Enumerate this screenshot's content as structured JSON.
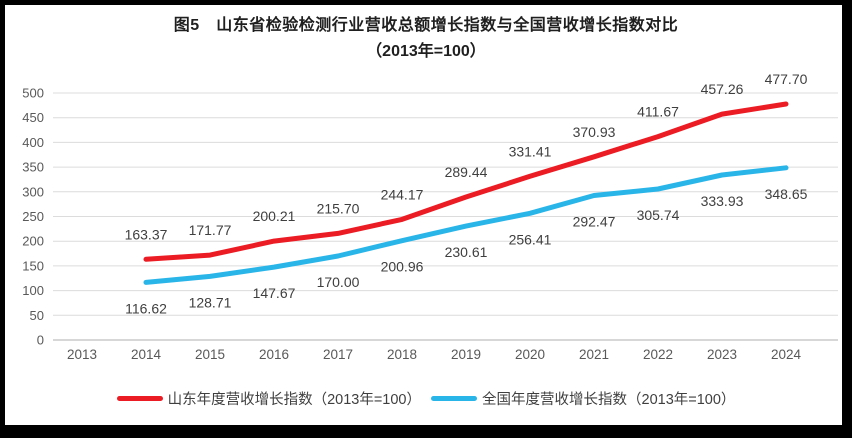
{
  "chart_data": {
    "type": "line",
    "title": "图5　山东省检验检测行业营收总额增长指数与全国营收增长指数对比",
    "subtitle": "（2013年=100）",
    "categories": [
      "2013",
      "2014",
      "2015",
      "2016",
      "2017",
      "2018",
      "2019",
      "2020",
      "2021",
      "2022",
      "2023",
      "2024"
    ],
    "y_ticks": [
      0,
      50,
      100,
      150,
      200,
      250,
      300,
      350,
      400,
      450,
      500
    ],
    "ylim": [
      0,
      500
    ],
    "grid": true,
    "legend_position": "bottom",
    "colors": {
      "grid_line": "#dcdcdc",
      "axis_line": "#bfbfbf",
      "axis_label": "#595959",
      "data_label": "#3f3f3f"
    },
    "series": [
      {
        "name": "山东年度营收增长指数（2013年=100）",
        "color": "#ec1c24",
        "label_position": "above",
        "values": [
          null,
          163.37,
          171.77,
          200.21,
          215.7,
          244.17,
          289.44,
          331.41,
          370.93,
          411.67,
          457.26,
          477.7
        ]
      },
      {
        "name": "全国年度营收增长指数（2013年=100）",
        "color": "#2ab5e9",
        "label_position": "below",
        "values": [
          null,
          116.62,
          128.71,
          147.67,
          170.0,
          200.96,
          230.61,
          256.41,
          292.47,
          305.74,
          333.93,
          348.65
        ]
      }
    ]
  }
}
